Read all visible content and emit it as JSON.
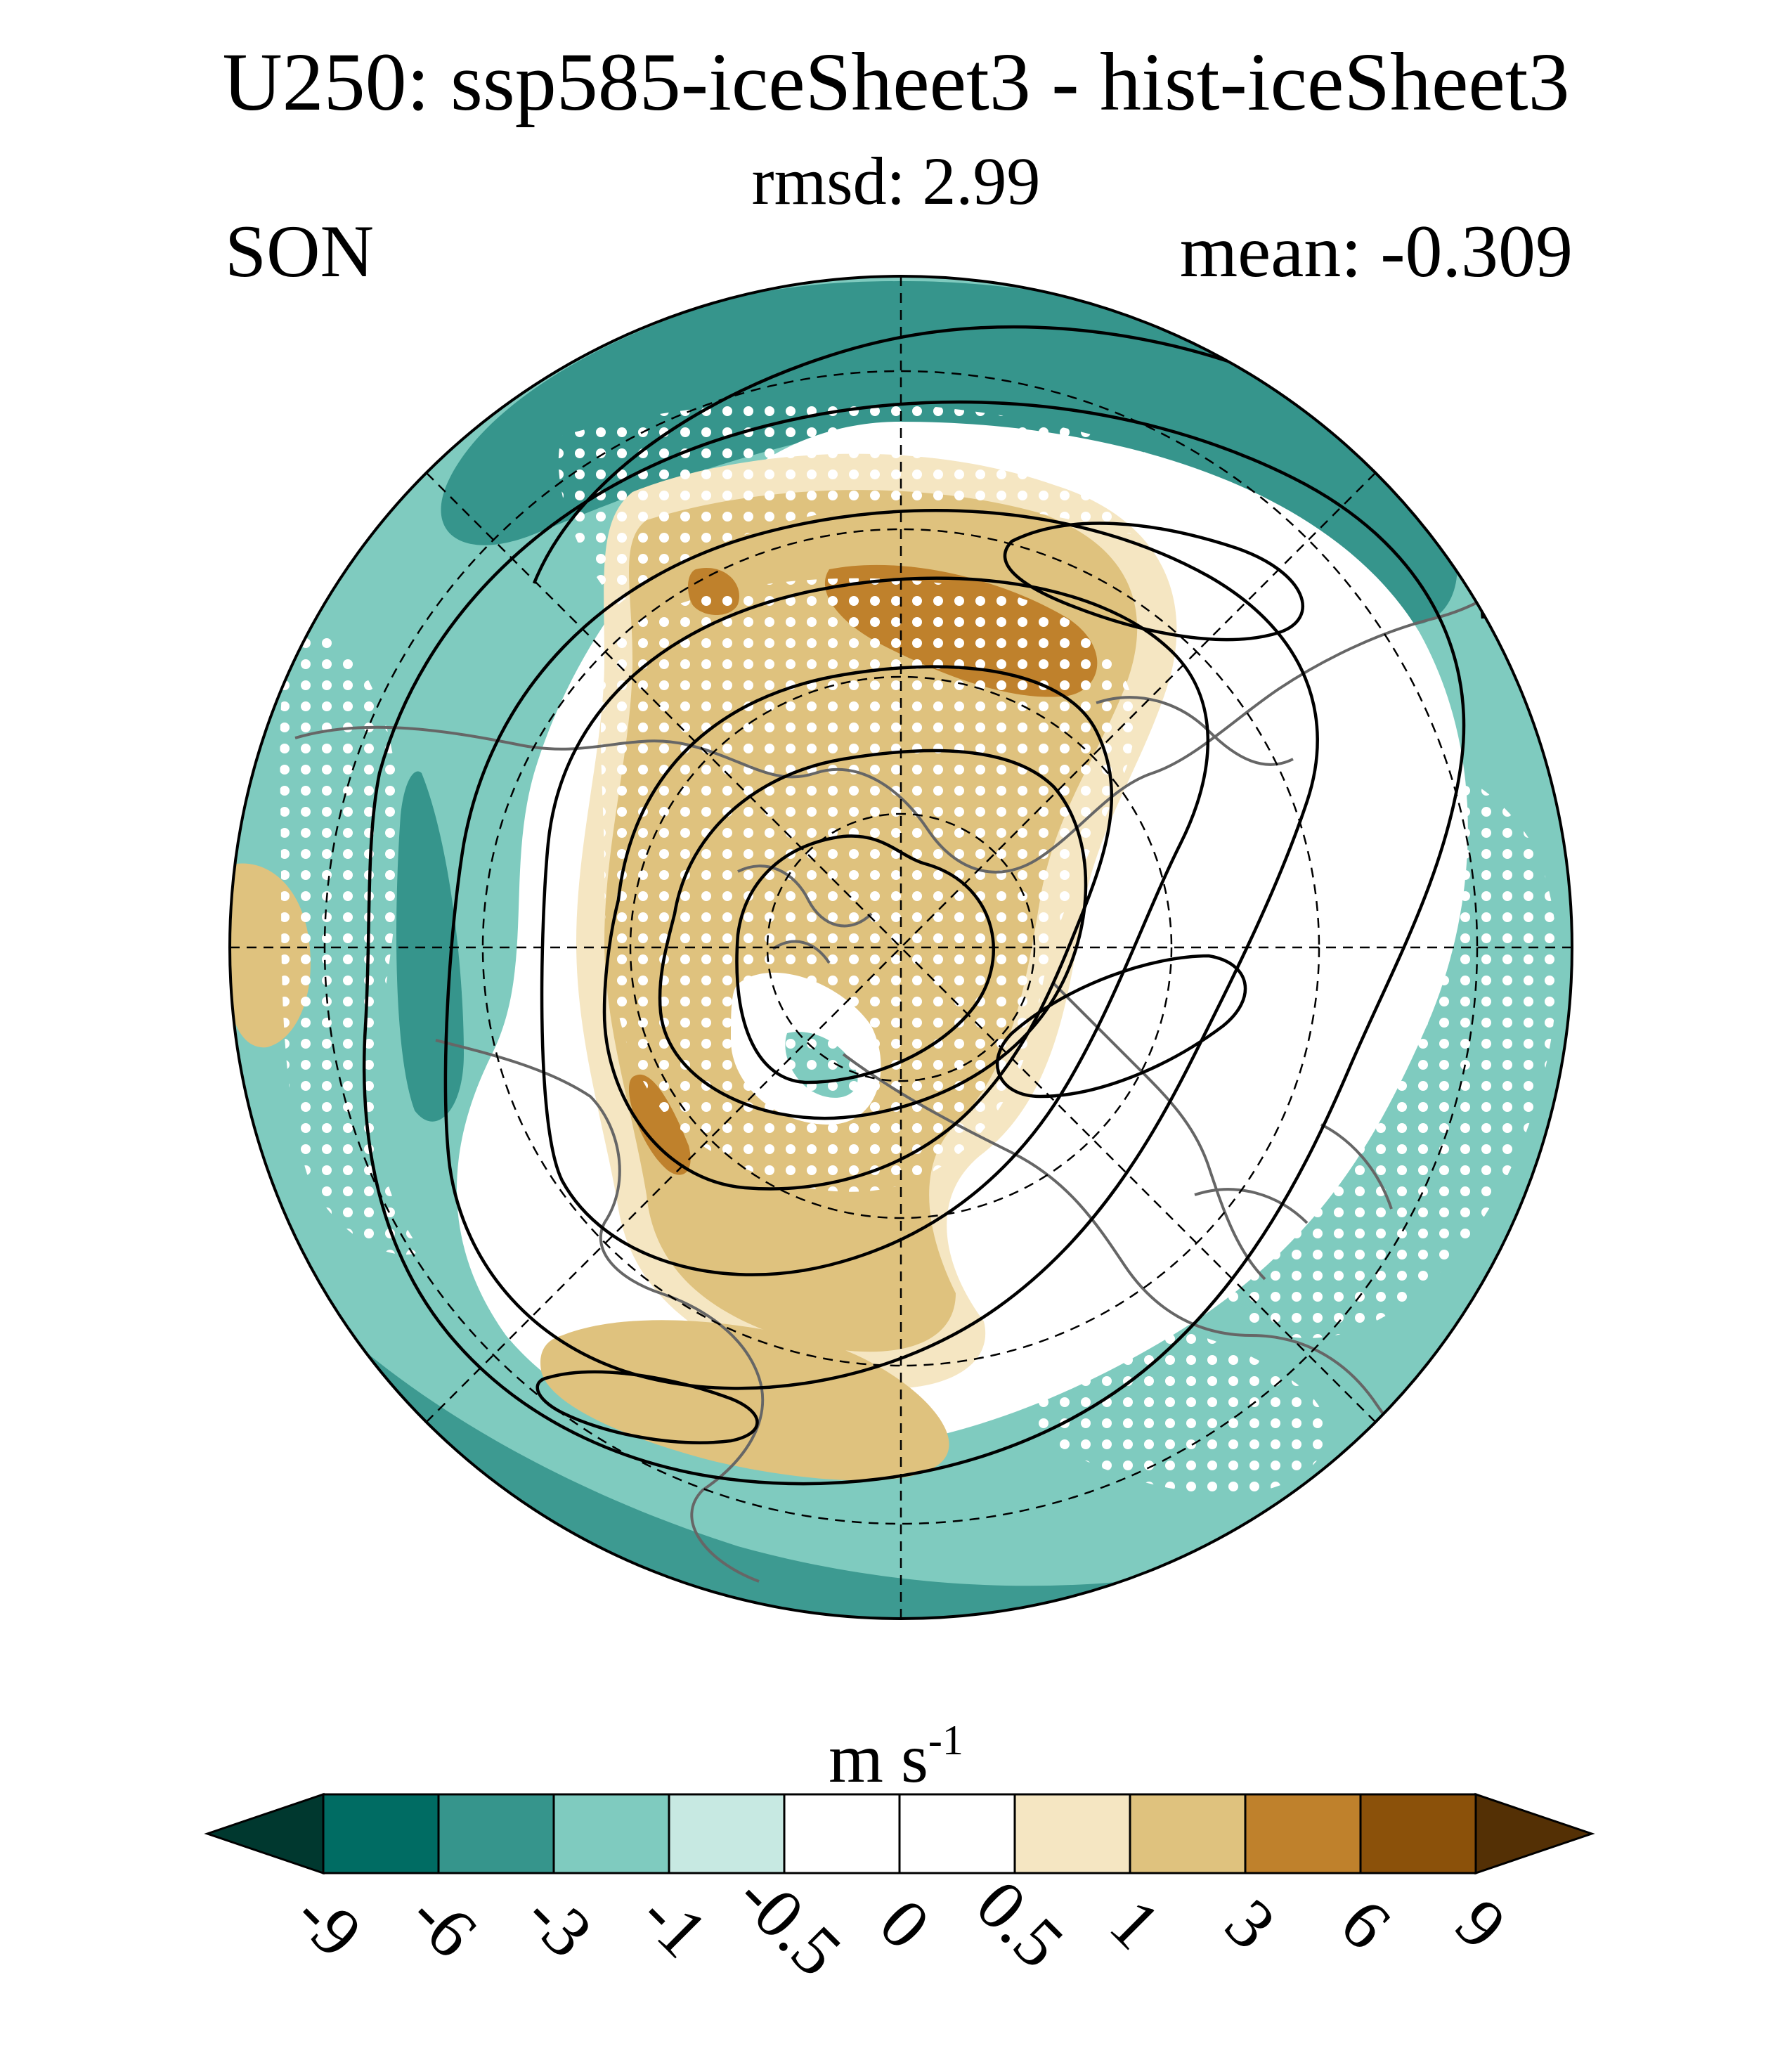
{
  "header": {
    "title": "U250: ssp585-iceSheet3 - hist-iceSheet3",
    "subtitle": "rmsd: 2.99",
    "season": "SON",
    "mean": "mean: -0.309"
  },
  "colorbar": {
    "units_base": "m s",
    "units_exp": "-1",
    "labels": [
      "-9",
      "-6",
      "-3",
      "-1",
      "-0.5",
      "0",
      "0.5",
      "1",
      "3",
      "6",
      "9"
    ],
    "colors": [
      "#00382f",
      "#006c63",
      "#36958c",
      "#7fcbbf",
      "#c7e9e2",
      "#ffffff",
      "#ffffff",
      "#f5e6c2",
      "#dfc27e",
      "#bf812c",
      "#8b510a",
      "#543005"
    ]
  },
  "map": {
    "projection": "north-polar-stereographic",
    "ocean_color": "#ffffff",
    "stipple_color": "#ffffff",
    "coastline_color": "#666666",
    "contour_color": "#000000",
    "grid_style": "dashed"
  }
}
